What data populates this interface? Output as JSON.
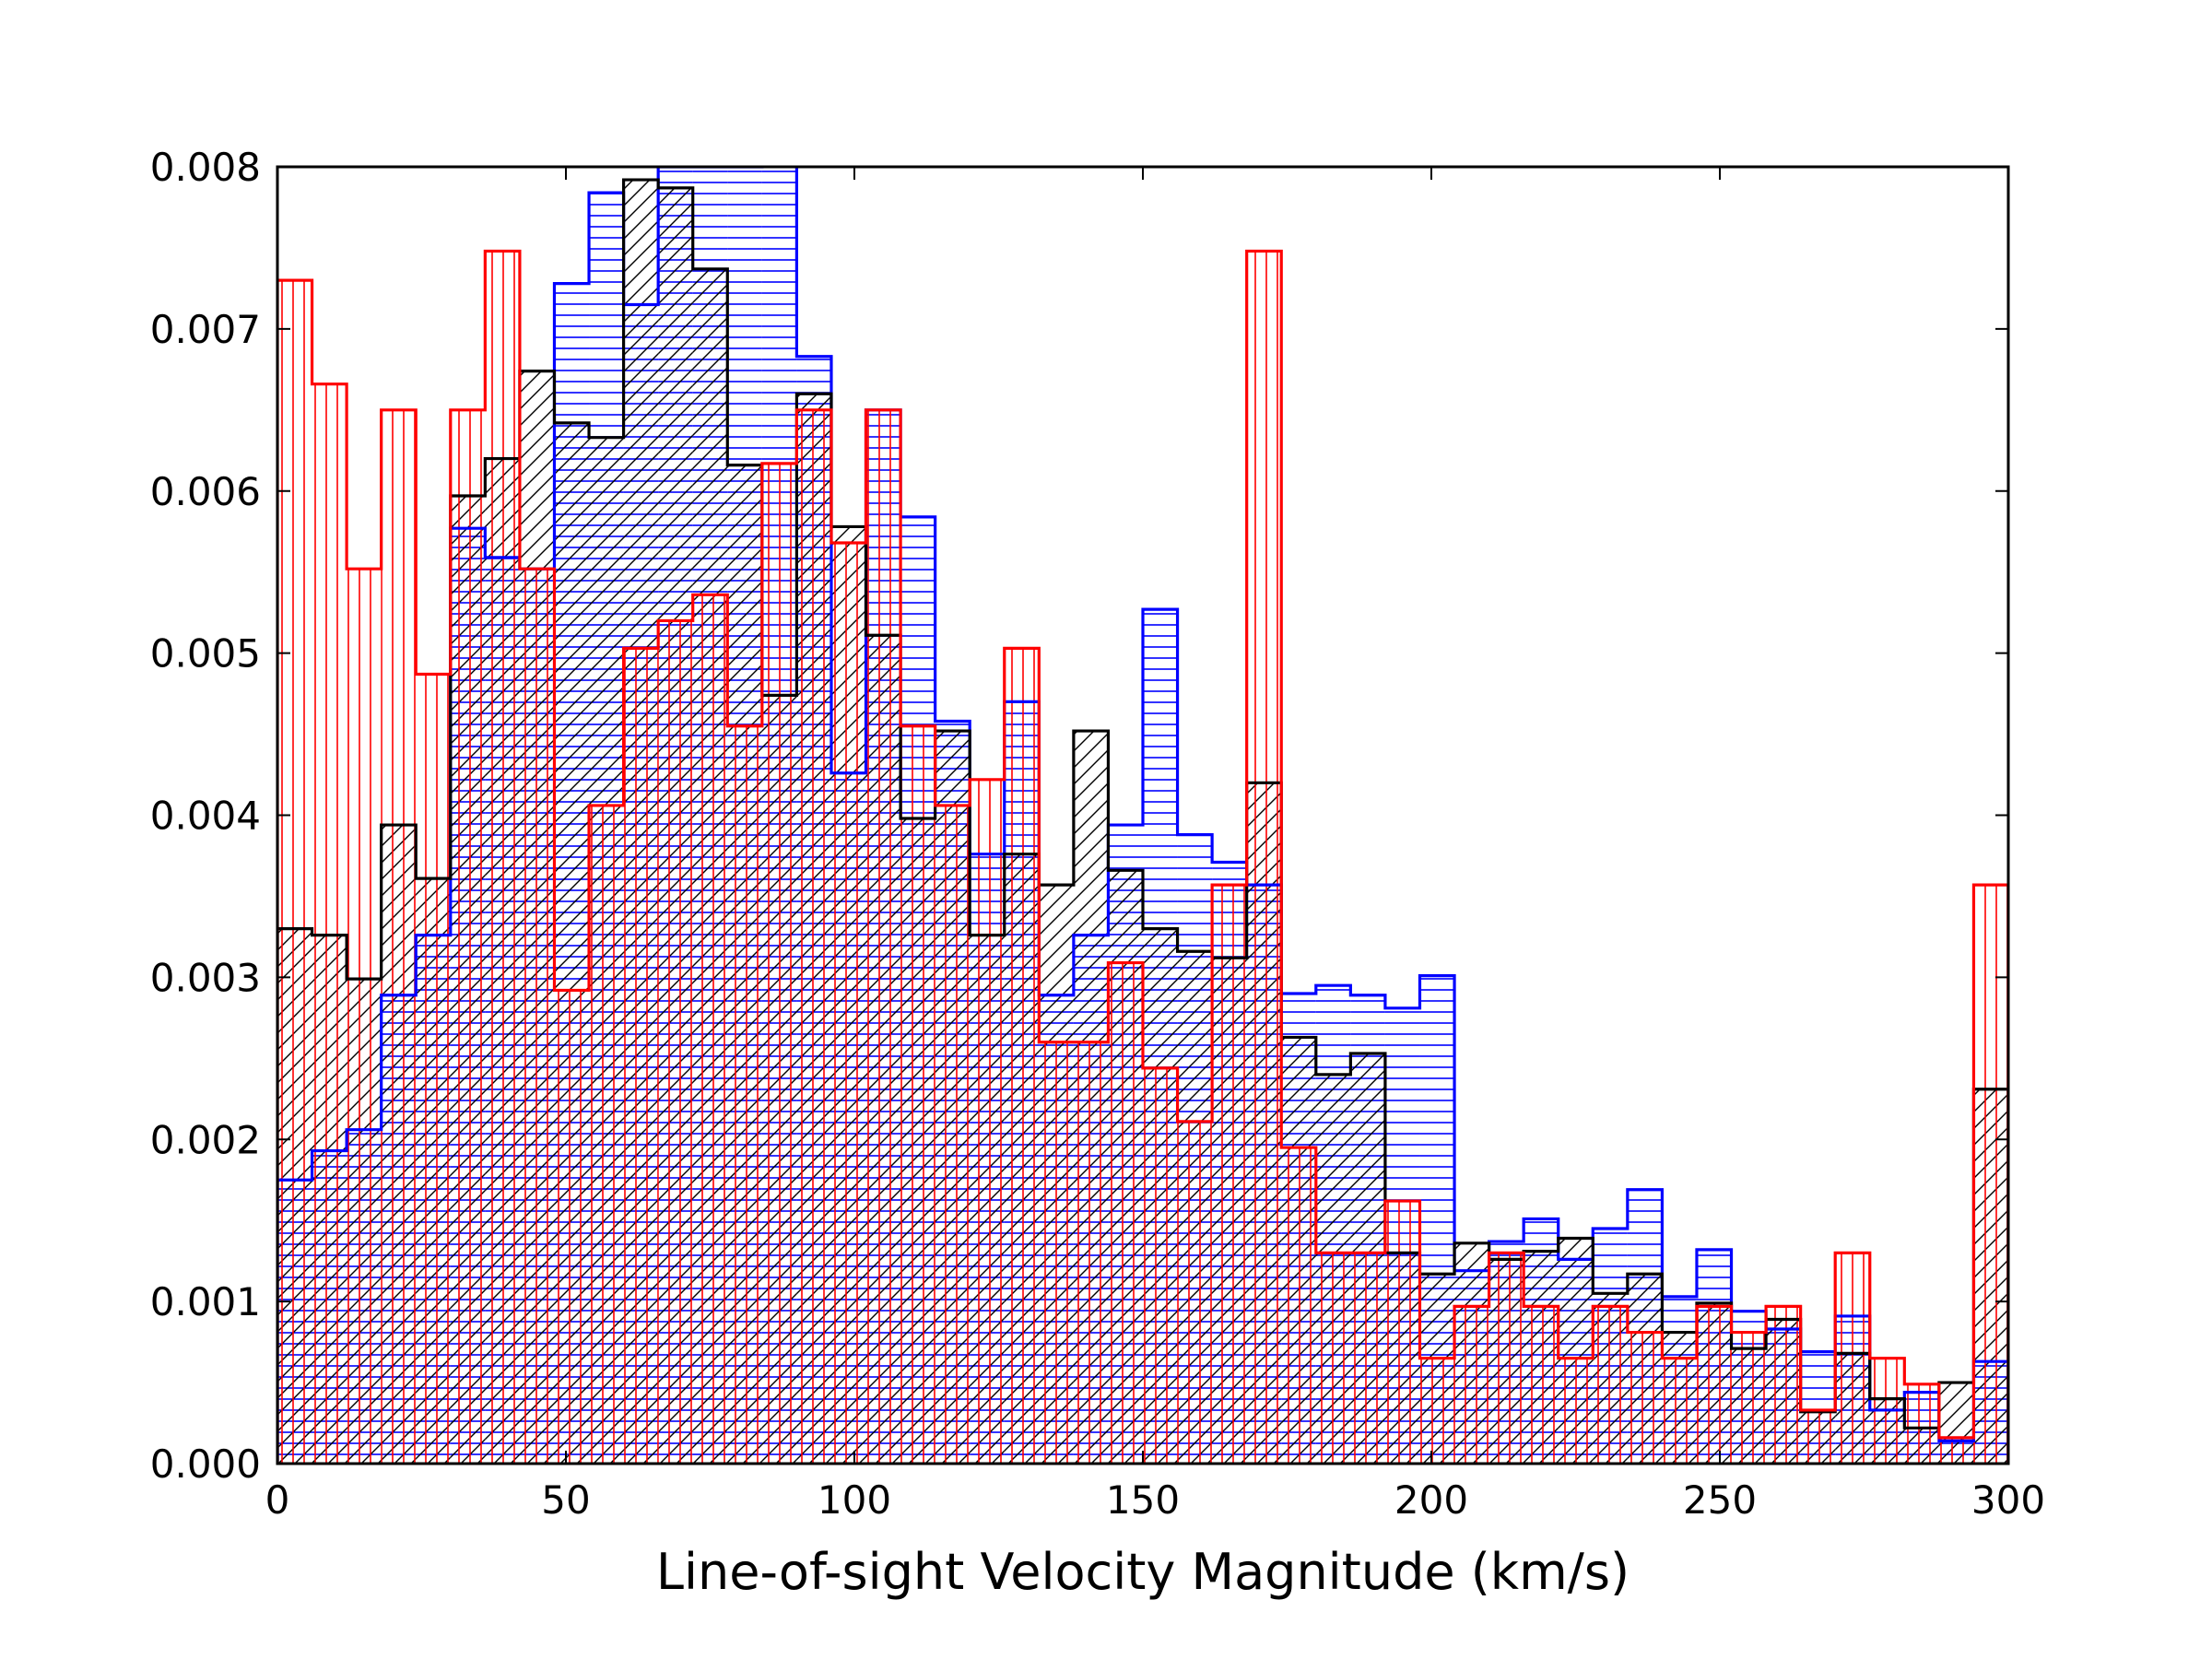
{
  "chart_data": {
    "type": "histogram",
    "title": "",
    "xlabel": "Line-of-sight Velocity Magnitude (km/s)",
    "ylabel": "",
    "xlim": [
      0,
      300
    ],
    "ylim": [
      0,
      0.008
    ],
    "xticks": [
      0,
      50,
      100,
      150,
      200,
      250,
      300
    ],
    "yticks": [
      0.0,
      0.001,
      0.002,
      0.003,
      0.004,
      0.005,
      0.006,
      0.007,
      0.008
    ],
    "xtick_labels": [
      "0",
      "50",
      "100",
      "150",
      "200",
      "250",
      "300"
    ],
    "ytick_labels": [
      "0.000",
      "0.001",
      "0.002",
      "0.003",
      "0.004",
      "0.005",
      "0.006",
      "0.007",
      "0.008"
    ],
    "bin_width": 6,
    "bin_edges_start": 0,
    "grid": false,
    "series": [
      {
        "name": "blue",
        "color": "#0000ff",
        "hatch": "horizontal",
        "values": [
          0.00175,
          0.00193,
          0.00206,
          0.00289,
          0.00326,
          0.00577,
          0.00559,
          0.00552,
          0.00728,
          0.00784,
          0.00715,
          0.008,
          0.008,
          0.008,
          0.0081,
          0.00683,
          0.00426,
          0.0065,
          0.00584,
          0.00458,
          0.00376,
          0.0047,
          0.00289,
          0.00326,
          0.00394,
          0.00527,
          0.00388,
          0.00371,
          0.00357,
          0.0029,
          0.00295,
          0.00289,
          0.00281,
          0.00301,
          0.00119,
          0.00137,
          0.00151,
          0.00126,
          0.00145,
          0.00169,
          0.00103,
          0.00132,
          0.00094,
          0.00083,
          0.00069,
          0.00091,
          0.00033,
          0.00044,
          0.00014,
          0.00063
        ]
      },
      {
        "name": "black",
        "color": "#000000",
        "hatch": "diagonal",
        "values": [
          0.0033,
          0.00326,
          0.00299,
          0.00394,
          0.00361,
          0.00597,
          0.0062,
          0.00674,
          0.00642,
          0.00633,
          0.00792,
          0.00787,
          0.00737,
          0.00616,
          0.00474,
          0.0066,
          0.00578,
          0.00511,
          0.00398,
          0.00452,
          0.00326,
          0.00376,
          0.00357,
          0.00452,
          0.00366,
          0.0033,
          0.00316,
          0.00312,
          0.0042,
          0.00263,
          0.0024,
          0.00253,
          0.0013,
          0.00117,
          0.00136,
          0.00126,
          0.00131,
          0.00139,
          0.00105,
          0.00117,
          0.00081,
          0.00099,
          0.00071,
          0.00089,
          0.00032,
          0.00068,
          0.0004,
          0.00022,
          0.0005,
          0.00231
        ]
      },
      {
        "name": "red",
        "color": "#ff0000",
        "hatch": "vertical",
        "values": [
          0.0073,
          0.00666,
          0.00552,
          0.0065,
          0.00487,
          0.0065,
          0.00748,
          0.00552,
          0.00292,
          0.00406,
          0.00503,
          0.0052,
          0.00536,
          0.00455,
          0.00617,
          0.0065,
          0.00568,
          0.0065,
          0.00455,
          0.00406,
          0.00422,
          0.00503,
          0.0026,
          0.0026,
          0.00309,
          0.00244,
          0.00211,
          0.00357,
          0.00748,
          0.00195,
          0.0013,
          0.0013,
          0.00162,
          0.00065,
          0.00097,
          0.0013,
          0.00097,
          0.00065,
          0.00097,
          0.00081,
          0.00065,
          0.00097,
          0.00081,
          0.00097,
          0.00033,
          0.0013,
          0.00065,
          0.00049,
          0.00016,
          0.00357
        ]
      }
    ]
  }
}
